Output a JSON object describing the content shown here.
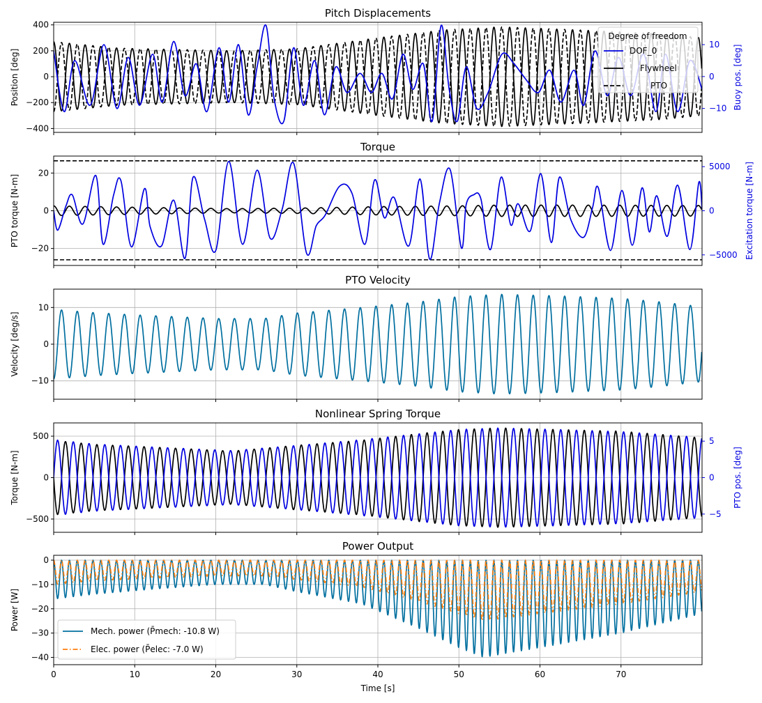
{
  "chart_data": [
    {
      "type": "line",
      "title": "Pitch Displacements",
      "ylabel": "Position [deg]",
      "ylabel_right": "Buoy pos. [deg]",
      "xlim": [
        0,
        80
      ],
      "ylim": [
        -430,
        420
      ],
      "y_ticks": [
        "400",
        "200",
        "0",
        "−200",
        "−400"
      ],
      "ylim_right": [
        -17.5,
        17
      ],
      "y_ticks_right": [
        "10",
        "0",
        "−10"
      ],
      "legend": {
        "title": "Degree of freedom",
        "placement": "top-right",
        "entries": [
          "DOF_0",
          "Flywheel",
          "PTO"
        ]
      },
      "series": [
        {
          "name": "Flywheel",
          "axis": "left",
          "color": "#000000",
          "style": "solid",
          "envelope": [
            [
              0,
              270
            ],
            [
              8,
              220
            ],
            [
              22,
              200
            ],
            [
              30,
              215
            ],
            [
              40,
              300
            ],
            [
              48,
              360
            ],
            [
              55,
              385
            ],
            [
              65,
              360
            ],
            [
              75,
              330
            ],
            [
              80,
              300
            ]
          ],
          "period": 1.94
        },
        {
          "name": "PTO",
          "axis": "left",
          "color": "#000000",
          "style": "dashed",
          "envelope": [
            [
              0,
              270
            ],
            [
              8,
              220
            ],
            [
              22,
              200
            ],
            [
              30,
              215
            ],
            [
              40,
              300
            ],
            [
              48,
              360
            ],
            [
              55,
              385
            ],
            [
              65,
              360
            ],
            [
              75,
              330
            ],
            [
              80,
              300
            ]
          ],
          "period": 1.94
        },
        {
          "name": "DOF_0",
          "axis": "right",
          "color": "#0000e0",
          "style": "solid",
          "points": [
            [
              0,
              8
            ],
            [
              1.3,
              -11
            ],
            [
              2.6,
              5
            ],
            [
              4.5,
              -9
            ],
            [
              6.2,
              10
            ],
            [
              7.8,
              -10
            ],
            [
              9.2,
              6
            ],
            [
              10.6,
              -9
            ],
            [
              12.2,
              7
            ],
            [
              13.4,
              -8
            ],
            [
              14.8,
              11
            ],
            [
              16.2,
              -6
            ],
            [
              17.6,
              4
            ],
            [
              18.9,
              -11
            ],
            [
              20.4,
              9
            ],
            [
              21.6,
              -8
            ],
            [
              22.8,
              10
            ],
            [
              24,
              -12
            ],
            [
              25.1,
              3
            ],
            [
              26.2,
              16
            ],
            [
              27.2,
              -7
            ],
            [
              28.4,
              -14
            ],
            [
              29.6,
              9
            ],
            [
              30.8,
              -9
            ],
            [
              32.2,
              5
            ],
            [
              33.4,
              -12
            ],
            [
              34.8,
              3
            ],
            [
              36.2,
              -5
            ],
            [
              37.8,
              1
            ],
            [
              39.2,
              -5
            ],
            [
              40.5,
              1
            ],
            [
              41.8,
              -7
            ],
            [
              43.1,
              7
            ],
            [
              44.3,
              -4
            ],
            [
              45.6,
              4
            ],
            [
              46.7,
              -14
            ],
            [
              47.8,
              16
            ],
            [
              48.8,
              -4
            ],
            [
              49.8,
              -14
            ],
            [
              50.9,
              3
            ],
            [
              52.2,
              -10
            ],
            [
              53.6,
              -5
            ],
            [
              55.3,
              7
            ],
            [
              56.8,
              4
            ],
            [
              58.3,
              -1
            ],
            [
              59.8,
              -5
            ],
            [
              61.2,
              2
            ],
            [
              62.6,
              -8
            ],
            [
              64.2,
              2
            ],
            [
              65.4,
              -9
            ],
            [
              66.8,
              8
            ],
            [
              68.3,
              -6
            ],
            [
              69.7,
              6
            ],
            [
              71.2,
              -6
            ],
            [
              72.8,
              7
            ],
            [
              74.3,
              -11
            ],
            [
              75.5,
              7
            ],
            [
              77,
              -11
            ],
            [
              78.5,
              5
            ],
            [
              80,
              -4
            ]
          ]
        }
      ]
    },
    {
      "type": "line",
      "title": "Torque",
      "ylabel": "PTO torque [N-m]",
      "ylabel_right": "Excitation torque [N-m]",
      "xlim": [
        0,
        80
      ],
      "ylim": [
        -29,
        29
      ],
      "y_ticks": [
        "20",
        "0",
        "−20"
      ],
      "ylim_right": [
        -6200,
        6200
      ],
      "y_ticks_right": [
        "5000",
        "0",
        "−5000"
      ],
      "limit_lines": [
        26.5,
        -26
      ],
      "series": [
        {
          "name": "",
          "axis": "left",
          "color": "#000000",
          "style": "solid",
          "envelope": [
            [
              0,
              2.6
            ],
            [
              8,
              2
            ],
            [
              22,
              1.1
            ],
            [
              30,
              1.4
            ],
            [
              40,
              2.2
            ],
            [
              50,
              2.6
            ],
            [
              55,
              3
            ],
            [
              65,
              3
            ],
            [
              80,
              2.8
            ]
          ],
          "period": 1.94
        },
        {
          "name": "",
          "axis": "right",
          "color": "#0000e0",
          "style": "solid",
          "points": [
            [
              0,
              0
            ],
            [
              0.5,
              -2200
            ],
            [
              1.5,
              500
            ],
            [
              2.3,
              1800
            ],
            [
              3.6,
              -1500
            ],
            [
              5.2,
              4000
            ],
            [
              6.1,
              -3800
            ],
            [
              7.4,
              1800
            ],
            [
              8.3,
              3400
            ],
            [
              9.6,
              -4100
            ],
            [
              11.2,
              2500
            ],
            [
              11.9,
              -1800
            ],
            [
              13.3,
              -4000
            ],
            [
              14.8,
              1200
            ],
            [
              16.2,
              -5400
            ],
            [
              17.2,
              3800
            ],
            [
              18.6,
              -900
            ],
            [
              20,
              -4500
            ],
            [
              21.6,
              5600
            ],
            [
              23.3,
              -3800
            ],
            [
              25.1,
              4600
            ],
            [
              26.7,
              -3100
            ],
            [
              28.2,
              200
            ],
            [
              29.6,
              5400
            ],
            [
              31.2,
              -4800
            ],
            [
              32.4,
              -1700
            ],
            [
              33.5,
              -500
            ],
            [
              35.3,
              2800
            ],
            [
              36.8,
              2000
            ],
            [
              38.4,
              -3800
            ],
            [
              39.6,
              3500
            ],
            [
              40.8,
              -800
            ],
            [
              42,
              1500
            ],
            [
              43.8,
              -4000
            ],
            [
              45.2,
              3600
            ],
            [
              46.4,
              -5500
            ],
            [
              47.6,
              900
            ],
            [
              48.9,
              4700
            ],
            [
              50.3,
              -4200
            ],
            [
              50.9,
              700
            ],
            [
              51.8,
              1800
            ],
            [
              52.7,
              1400
            ],
            [
              53.9,
              -4400
            ],
            [
              55.2,
              3800
            ],
            [
              56.4,
              -1600
            ],
            [
              57.3,
              800
            ],
            [
              58.8,
              -2300
            ],
            [
              60.1,
              4200
            ],
            [
              61.4,
              -3600
            ],
            [
              62.4,
              3800
            ],
            [
              63.8,
              -1000
            ],
            [
              65.4,
              -3000
            ],
            [
              66.5,
              400
            ],
            [
              67.2,
              2600
            ],
            [
              68.7,
              -4500
            ],
            [
              70.1,
              2300
            ],
            [
              71.4,
              -3900
            ],
            [
              72.6,
              2600
            ],
            [
              73.5,
              -2400
            ],
            [
              74.4,
              1700
            ],
            [
              75.7,
              -2900
            ],
            [
              77,
              2900
            ],
            [
              78.5,
              -4400
            ],
            [
              79.6,
              3200
            ],
            [
              80,
              200
            ]
          ]
        }
      ]
    },
    {
      "type": "line",
      "title": "PTO Velocity",
      "ylabel": "Velocity [deg/s]",
      "xlim": [
        0,
        80
      ],
      "ylim": [
        -15,
        15
      ],
      "y_ticks": [
        "10",
        "0",
        "−10"
      ],
      "series": [
        {
          "name": "",
          "axis": "left",
          "color": "#006f9f",
          "style": "solid",
          "envelope": [
            [
              0,
              9.5
            ],
            [
              5,
              8.6
            ],
            [
              10,
              8
            ],
            [
              20,
              7
            ],
            [
              26,
              7
            ],
            [
              30,
              8.5
            ],
            [
              38,
              10
            ],
            [
              45,
              11.5
            ],
            [
              50,
              13
            ],
            [
              55,
              13.6
            ],
            [
              62,
              13.2
            ],
            [
              70,
              12.5
            ],
            [
              75,
              11.5
            ],
            [
              80,
              10.2
            ]
          ],
          "period": 1.94,
          "phase": 0.5
        }
      ]
    },
    {
      "type": "line",
      "title": "Nonlinear Spring Torque",
      "ylabel": "Torque [N-m]",
      "ylabel_right": "PTO pos. [deg]",
      "xlim": [
        0,
        80
      ],
      "ylim": [
        -660,
        660
      ],
      "y_ticks": [
        "500",
        "0",
        "−500"
      ],
      "ylim_right": [
        -7.5,
        7.5
      ],
      "y_ticks_right": [
        "5",
        "0",
        "−5"
      ],
      "series": [
        {
          "name": "",
          "axis": "left",
          "color": "#000000",
          "style": "solid",
          "envelope": [
            [
              0,
              450
            ],
            [
              5,
              400
            ],
            [
              12,
              370
            ],
            [
              22,
              320
            ],
            [
              30,
              390
            ],
            [
              38,
              450
            ],
            [
              45,
              530
            ],
            [
              50,
              580
            ],
            [
              55,
              600
            ],
            [
              62,
              580
            ],
            [
              70,
              560
            ],
            [
              80,
              480
            ]
          ],
          "period": 1.94,
          "phase": 0.25
        },
        {
          "name": "",
          "axis": "right",
          "color": "#0000e0",
          "style": "solid",
          "envelope": [
            [
              0,
              5.2
            ],
            [
              5,
              4.6
            ],
            [
              12,
              4.2
            ],
            [
              22,
              3.7
            ],
            [
              30,
              4.4
            ],
            [
              38,
              5.2
            ],
            [
              45,
              6
            ],
            [
              50,
              6.6
            ],
            [
              55,
              6.8
            ],
            [
              62,
              6.6
            ],
            [
              70,
              6.3
            ],
            [
              80,
              5.5
            ]
          ],
          "period": 1.94,
          "phase": 0.75
        }
      ]
    },
    {
      "type": "line",
      "title": "Power Output",
      "ylabel": "Power [W]",
      "xlabel": "Time [s]",
      "xlim": [
        0,
        80
      ],
      "x_ticks": [
        "0",
        "10",
        "20",
        "30",
        "40",
        "50",
        "60",
        "70"
      ],
      "ylim": [
        -43,
        2
      ],
      "y_ticks": [
        "0",
        "−10",
        "−20",
        "−30",
        "−40"
      ],
      "legend": {
        "placement": "lower-left",
        "entries": [
          "Mech. power (P̄mech: -10.8 W)",
          "Elec. power (P̄elec: -7.0 W)"
        ]
      },
      "series": [
        {
          "name": "Mech. power (P̄mech: -10.8 W)",
          "axis": "left",
          "color": "#006f9f",
          "style": "solid",
          "envelope": [
            [
              0,
              16
            ],
            [
              5,
              14
            ],
            [
              12,
              12
            ],
            [
              20,
              10
            ],
            [
              26,
              10
            ],
            [
              30,
              13
            ],
            [
              38,
              18
            ],
            [
              45,
              28
            ],
            [
              50,
              36
            ],
            [
              53,
              40
            ],
            [
              60,
              36
            ],
            [
              70,
              30
            ],
            [
              80,
              22
            ]
          ],
          "period": 0.97
        },
        {
          "name": "Elec. power (P̄elec: -7.0 W)",
          "axis": "left",
          "color": "#ff7f0e",
          "style": "dashdot",
          "envelope": [
            [
              0,
              10
            ],
            [
              5,
              8.5
            ],
            [
              12,
              7.5
            ],
            [
              20,
              6.5
            ],
            [
              26,
              6.5
            ],
            [
              30,
              8
            ],
            [
              38,
              11
            ],
            [
              45,
              17
            ],
            [
              50,
              22
            ],
            [
              53,
              25
            ],
            [
              60,
              22
            ],
            [
              70,
              18
            ],
            [
              80,
              13
            ]
          ],
          "period": 0.97
        }
      ]
    }
  ]
}
